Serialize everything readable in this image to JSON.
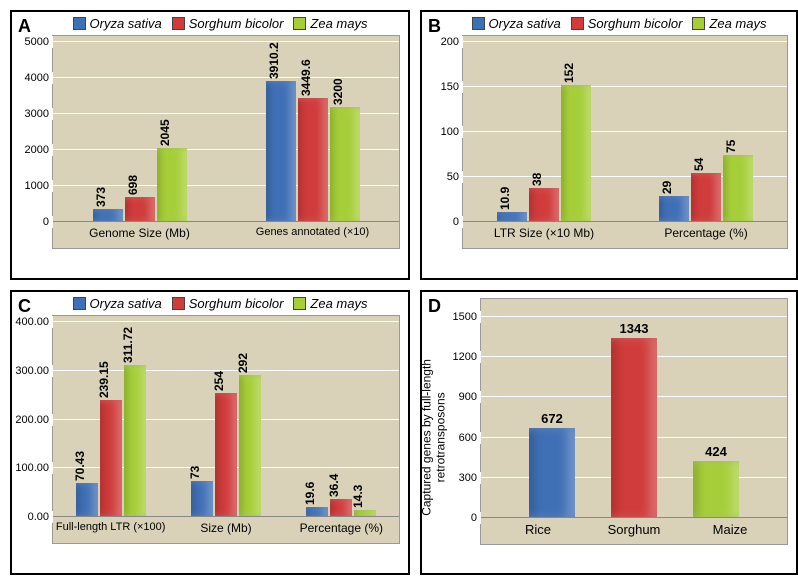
{
  "colors": {
    "oryza": "#3f6fb5",
    "sorghum": "#d03b3b",
    "zea": "#a6ce39",
    "plot_bg": "#d9d2b8",
    "grid": "#ffffff"
  },
  "species": {
    "oryza": "Oryza sativa",
    "sorghum": "Sorghum bicolor",
    "zea": "Zea mays"
  },
  "panelA": {
    "label": "A",
    "ymax": 5000,
    "ystep": 1000,
    "groups": [
      {
        "label": "Genome Size (Mb)",
        "values": {
          "oryza": 373,
          "sorghum": 698,
          "zea": 2045
        }
      },
      {
        "label": "Genes annotated (×10)",
        "values": {
          "oryza": 3910.2,
          "sorghum": 3449.6,
          "zea": 3200
        }
      }
    ]
  },
  "panelB": {
    "label": "B",
    "ymax": 200,
    "ystep": 50,
    "groups": [
      {
        "label": "LTR Size (×10 Mb)",
        "values": {
          "oryza": 10.9,
          "sorghum": 38,
          "zea": 152
        }
      },
      {
        "label": "Percentage (%)",
        "values": {
          "oryza": 29,
          "sorghum": 54,
          "zea": 75
        }
      }
    ]
  },
  "panelC": {
    "label": "C",
    "ymax": 400,
    "ystep": 100,
    "decimals": 2,
    "groups": [
      {
        "label": "Full-length LTR (×100)",
        "values": {
          "oryza": 70.43,
          "sorghum": 239.15,
          "zea": 311.72
        }
      },
      {
        "label": "Size (Mb)",
        "values": {
          "oryza": 73,
          "sorghum": 254,
          "zea": 292
        }
      },
      {
        "label": "Percentage (%)",
        "values": {
          "oryza": 19.6,
          "sorghum": 36.4,
          "zea": 14.3
        }
      }
    ]
  },
  "panelD": {
    "label": "D",
    "ymax": 1500,
    "ystep": 300,
    "yaxis_title": "Captured genes by full-length retrotransposons",
    "bars": [
      {
        "label": "Rice",
        "value": 672,
        "colorkey": "oryza"
      },
      {
        "label": "Sorghum",
        "value": 1343,
        "colorkey": "sorghum"
      },
      {
        "label": "Maize",
        "value": 424,
        "colorkey": "zea"
      }
    ]
  }
}
